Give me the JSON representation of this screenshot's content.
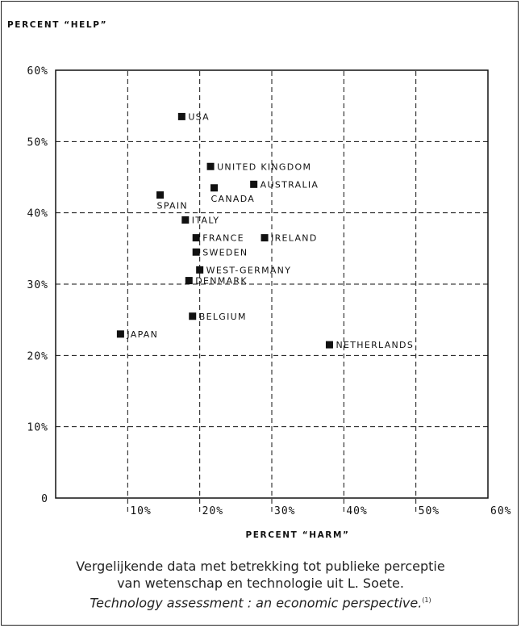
{
  "chart_data": {
    "type": "scatter",
    "ylabel": "Percent “Help”",
    "xlabel": "Percent “Harm”",
    "xlim": [
      0,
      60
    ],
    "ylim": [
      0,
      60
    ],
    "xticks": [
      "10%",
      "20%",
      "30%",
      "40%",
      "50%",
      "60%"
    ],
    "yticks": [
      "0",
      "10%",
      "20%",
      "30%",
      "40%",
      "50%",
      "60%"
    ],
    "grid": true,
    "points": [
      {
        "label": "USA",
        "x": 17.5,
        "y": 53.5
      },
      {
        "label": "UNITED KINGDOM",
        "x": 21.5,
        "y": 46.5
      },
      {
        "label": "AUSTRALIA",
        "x": 27.5,
        "y": 44
      },
      {
        "label": "CANADA",
        "x": 22,
        "y": 43.5
      },
      {
        "label": "SPAIN",
        "x": 14.5,
        "y": 42.5
      },
      {
        "label": "ITALY",
        "x": 18,
        "y": 39
      },
      {
        "label": "FRANCE",
        "x": 19.5,
        "y": 36.5
      },
      {
        "label": "IRELAND",
        "x": 29,
        "y": 36.5
      },
      {
        "label": "SWEDEN",
        "x": 19.5,
        "y": 34.5
      },
      {
        "label": "WEST-GERMANY",
        "x": 20,
        "y": 32
      },
      {
        "label": "DENMARK",
        "x": 18.5,
        "y": 30.5
      },
      {
        "label": "BELGIUM",
        "x": 19,
        "y": 25.5
      },
      {
        "label": "JAPAN",
        "x": 9,
        "y": 23
      },
      {
        "label": "NETHERLANDS",
        "x": 38,
        "y": 21.5
      }
    ]
  },
  "caption": {
    "line1": "Vergelijkende data met betrekking tot publieke perceptie",
    "line2": "van wetenschap en technologie uit L. Soete.",
    "line3": "Technology assessment : an economic perspective.",
    "footnote_marker": "(1)"
  }
}
